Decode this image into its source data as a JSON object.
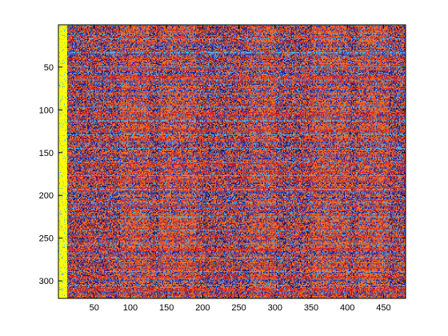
{
  "chart_data": {
    "type": "heatmap",
    "title": "",
    "xlabel": "",
    "ylabel": "",
    "xlim": [
      0.5,
      480.5
    ],
    "ylim": [
      0.5,
      320.5
    ],
    "y_direction": "reversed",
    "grid": false,
    "legend": "none",
    "x_ticks": [
      50,
      100,
      150,
      200,
      250,
      300,
      350,
      400,
      450
    ],
    "y_ticks": [
      50,
      100,
      150,
      200,
      250,
      300
    ],
    "x_tick_labels": [
      "50",
      "100",
      "150",
      "200",
      "250",
      "300",
      "350",
      "400",
      "450"
    ],
    "y_tick_labels": [
      "50",
      "100",
      "150",
      "200",
      "250",
      "300"
    ],
    "colormap": [
      "#00008f",
      "#0000ff",
      "#0080ff",
      "#00ffff",
      "#80ff80",
      "#ffff00",
      "#ff8000",
      "#ff0000",
      "#800000"
    ],
    "dominant_colors": {
      "background": "#f26b1f",
      "stripe": "#d6241f",
      "noise": "#1f2fb8",
      "dark": "#1a1a3a",
      "cyan": "#30c0ff",
      "left_column": "#ffff00"
    },
    "values_description_free": true
  }
}
